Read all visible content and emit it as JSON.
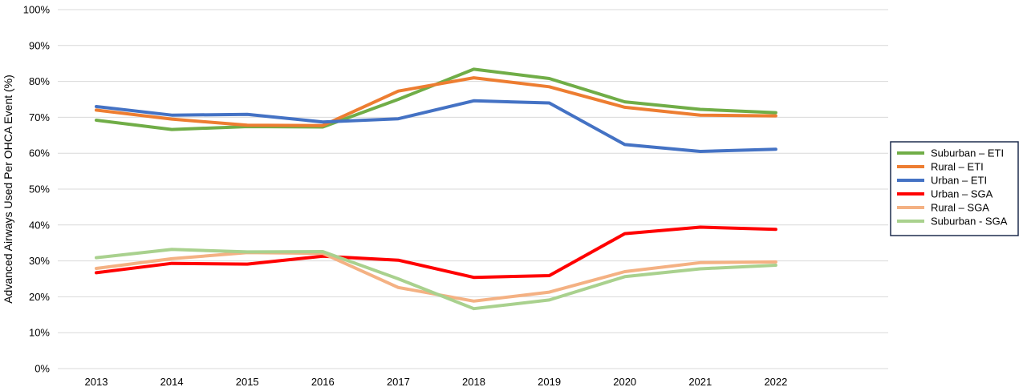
{
  "chart_data": {
    "type": "line",
    "title": "",
    "xlabel": "",
    "ylabel": "Advanced Airways Used Per OHCA Event (%)",
    "ylim": [
      0,
      100
    ],
    "y_ticks": [
      "0%",
      "10%",
      "20%",
      "30%",
      "40%",
      "50%",
      "60%",
      "70%",
      "80%",
      "90%",
      "100%"
    ],
    "x": [
      "2013",
      "2014",
      "2015",
      "2016",
      "2017",
      "2018",
      "2019",
      "2020",
      "2021",
      "2022"
    ],
    "grid": "horizontal",
    "legend_position": "right",
    "series": [
      {
        "name": "Suburban – ETI",
        "color": "#70AD47",
        "values": [
          69.2,
          66.6,
          67.4,
          67.3,
          75.0,
          83.4,
          80.8,
          74.3,
          72.2,
          71.3
        ]
      },
      {
        "name": "Rural – ETI",
        "color": "#ED7D31",
        "values": [
          72.0,
          69.5,
          67.8,
          67.7,
          77.3,
          81.0,
          78.5,
          72.8,
          70.6,
          70.4
        ]
      },
      {
        "name": "Urban – ETI",
        "color": "#4472C4",
        "values": [
          73.0,
          70.6,
          70.8,
          68.7,
          69.6,
          74.6,
          74.0,
          62.4,
          60.5,
          61.1
        ]
      },
      {
        "name": "Urban – SGA",
        "color": "#FF0000",
        "values": [
          26.7,
          29.3,
          29.1,
          31.3,
          30.2,
          25.4,
          25.9,
          37.6,
          39.4,
          38.8
        ]
      },
      {
        "name": "Rural – SGA",
        "color": "#F4B183",
        "values": [
          27.9,
          30.6,
          32.3,
          32.1,
          22.6,
          18.8,
          21.3,
          27.0,
          29.5,
          29.7
        ]
      },
      {
        "name": "Suburban - SGA",
        "color": "#A9D18E",
        "values": [
          30.9,
          33.2,
          32.5,
          32.6,
          25.0,
          16.7,
          19.1,
          25.6,
          27.8,
          28.8
        ]
      }
    ]
  }
}
